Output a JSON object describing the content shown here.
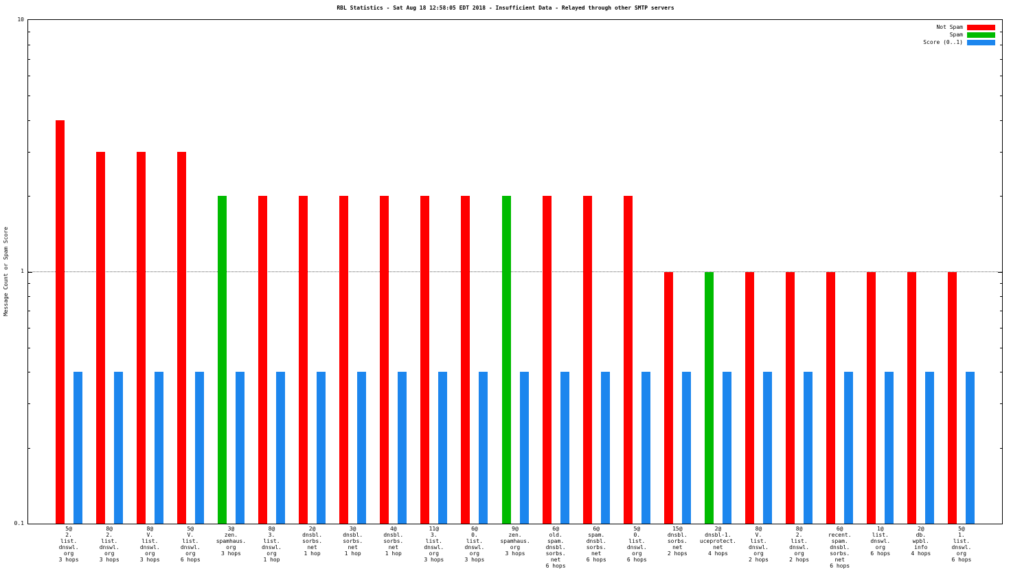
{
  "chart_data": {
    "type": "bar",
    "y_scale": "log",
    "ylim": [
      0.1,
      10
    ],
    "gridline_at": 1,
    "title": "RBL Statistics - Sat Aug 18 12:58:05 EDT 2018 - Insufficient Data - Relayed through other SMTP servers",
    "ylabel": "Message Count or Spam Score",
    "y_ticks": [
      {
        "label": "10",
        "value": 10
      },
      {
        "label": "1",
        "value": 1
      },
      {
        "label": "0.1",
        "value": 0.1
      }
    ],
    "colors": {
      "not_spam": "#ff0000",
      "spam": "#00bb00",
      "score": "#1c86ee"
    },
    "legend": {
      "position": "top-right",
      "entries": [
        {
          "key": "not_spam",
          "label": "Not Spam"
        },
        {
          "key": "spam",
          "label": "Spam"
        },
        {
          "key": "score",
          "label": "Score (0..1)"
        }
      ]
    },
    "groups": [
      {
        "label_lines": [
          "5@",
          "2.",
          "list.",
          "dnswl.",
          "org",
          "3 hops"
        ],
        "count": 4,
        "count_key": "not_spam",
        "score": 0.4
      },
      {
        "label_lines": [
          "8@",
          "2.",
          "list.",
          "dnswl.",
          "org",
          "3 hops"
        ],
        "count": 3,
        "count_key": "not_spam",
        "score": 0.4
      },
      {
        "label_lines": [
          "8@",
          "V.",
          "list.",
          "dnswl.",
          "org",
          "3 hops"
        ],
        "count": 3,
        "count_key": "not_spam",
        "score": 0.4
      },
      {
        "label_lines": [
          "5@",
          "V.",
          "list.",
          "dnswl.",
          "org",
          "6 hops"
        ],
        "count": 3,
        "count_key": "not_spam",
        "score": 0.4
      },
      {
        "label_lines": [
          "3@",
          "zen.",
          "spamhaus.",
          "org",
          "3 hops"
        ],
        "count": 2,
        "count_key": "spam",
        "score": 0.4
      },
      {
        "label_lines": [
          "8@",
          "3.",
          "list.",
          "dnswl.",
          "org",
          "1 hop"
        ],
        "count": 2,
        "count_key": "not_spam",
        "score": 0.4
      },
      {
        "label_lines": [
          "2@",
          "dnsbl.",
          "sorbs.",
          "net",
          "1 hop"
        ],
        "count": 2,
        "count_key": "not_spam",
        "score": 0.4
      },
      {
        "label_lines": [
          "3@",
          "dnsbl.",
          "sorbs.",
          "net",
          "1 hop"
        ],
        "count": 2,
        "count_key": "not_spam",
        "score": 0.4
      },
      {
        "label_lines": [
          "4@",
          "dnsbl.",
          "sorbs.",
          "net",
          "1 hop"
        ],
        "count": 2,
        "count_key": "not_spam",
        "score": 0.4
      },
      {
        "label_lines": [
          "11@",
          "3.",
          "list.",
          "dnswl.",
          "org",
          "3 hops"
        ],
        "count": 2,
        "count_key": "not_spam",
        "score": 0.4
      },
      {
        "label_lines": [
          "6@",
          "0.",
          "list.",
          "dnswl.",
          "org",
          "3 hops"
        ],
        "count": 2,
        "count_key": "not_spam",
        "score": 0.4
      },
      {
        "label_lines": [
          "9@",
          "zen.",
          "spamhaus.",
          "org",
          "3 hops"
        ],
        "count": 2,
        "count_key": "spam",
        "score": 0.4
      },
      {
        "label_lines": [
          "6@",
          "old.",
          "spam.",
          "dnsbl.",
          "sorbs.",
          "net",
          "6 hops"
        ],
        "count": 2,
        "count_key": "not_spam",
        "score": 0.4
      },
      {
        "label_lines": [
          "6@",
          "spam.",
          "dnsbl.",
          "sorbs.",
          "net",
          "6 hops"
        ],
        "count": 2,
        "count_key": "not_spam",
        "score": 0.4
      },
      {
        "label_lines": [
          "5@",
          "0.",
          "list.",
          "dnswl.",
          "org",
          "6 hops"
        ],
        "count": 2,
        "count_key": "not_spam",
        "score": 0.4
      },
      {
        "label_lines": [
          "15@",
          "dnsbl.",
          "sorbs.",
          "net",
          "2 hops"
        ],
        "count": 1,
        "count_key": "not_spam",
        "score": 0.4
      },
      {
        "label_lines": [
          "2@",
          "dnsbl-1.",
          "uceprotect.",
          "net",
          "4 hops"
        ],
        "count": 1,
        "count_key": "spam",
        "score": 0.4
      },
      {
        "label_lines": [
          "8@",
          "V.",
          "list.",
          "dnswl.",
          "org",
          "2 hops"
        ],
        "count": 1,
        "count_key": "not_spam",
        "score": 0.4
      },
      {
        "label_lines": [
          "8@",
          "2.",
          "list.",
          "dnswl.",
          "org",
          "2 hops"
        ],
        "count": 1,
        "count_key": "not_spam",
        "score": 0.4
      },
      {
        "label_lines": [
          "6@",
          "recent.",
          "spam.",
          "dnsbl.",
          "sorbs.",
          "net",
          "6 hops"
        ],
        "count": 1,
        "count_key": "not_spam",
        "score": 0.4
      },
      {
        "label_lines": [
          "1@",
          "list.",
          "dnswl.",
          "org",
          "6 hops"
        ],
        "count": 1,
        "count_key": "not_spam",
        "score": 0.4
      },
      {
        "label_lines": [
          "2@",
          "db.",
          "wpbl.",
          "info",
          "4 hops"
        ],
        "count": 1,
        "count_key": "not_spam",
        "score": 0.4
      },
      {
        "label_lines": [
          "5@",
          "1.",
          "list.",
          "dnswl.",
          "org",
          "6 hops"
        ],
        "count": 1,
        "count_key": "not_spam",
        "score": 0.4
      }
    ]
  }
}
